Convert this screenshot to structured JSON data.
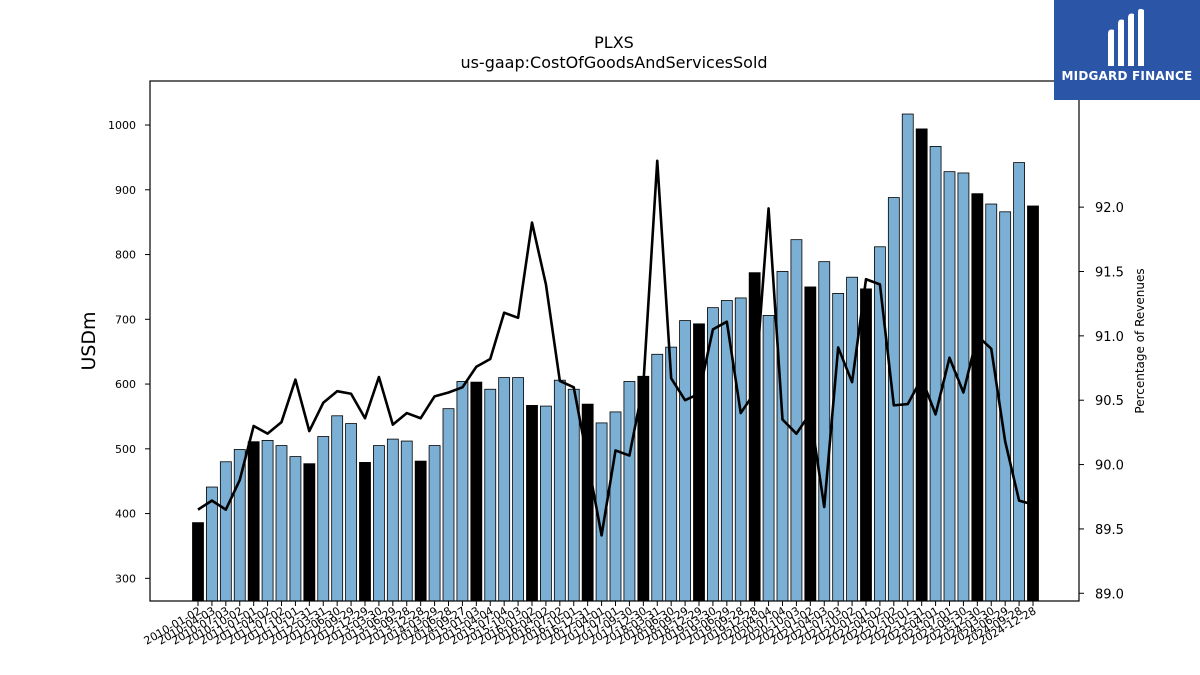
{
  "chart_data": {
    "type": "bar",
    "title": "PLXS",
    "subtitle": "us-gaap:CostOfGoodsAndServicesSold",
    "ylabel": "USDm",
    "y2label": "Percentage of Revenues",
    "ylim": [
      265,
      1068
    ],
    "y2lim": [
      88.94,
      92.98
    ],
    "yticks": [
      300,
      400,
      500,
      600,
      700,
      800,
      900,
      1000
    ],
    "y2ticks": [
      "89.0",
      "89.5",
      "90.0",
      "90.5",
      "91.0",
      "91.5",
      "92.0"
    ],
    "xticklabels": [
      "2010-01-02",
      "2010-04-03",
      "2010-07-03",
      "2010-10-02",
      "2011-01-01",
      "2011-04-02",
      "2011-07-02",
      "2011-10-01",
      "2011-12-31",
      "2012-03-31",
      "2012-06-30",
      "2012-09-29",
      "2012-12-29",
      "2013-03-30",
      "2013-06-29",
      "2013-09-28",
      "2013-12-28",
      "2014-03-29",
      "2014-06-28",
      "2014-09-27",
      "2015-01-03",
      "2015-04-04",
      "2015-07-04",
      "2015-10-03",
      "2016-01-02",
      "2016-04-02",
      "2016-07-02",
      "2016-10-01",
      "2016-12-31",
      "2017-04-01",
      "2017-07-01",
      "2017-09-30",
      "2017-12-30",
      "2018-03-31",
      "2018-06-30",
      "2018-09-29",
      "2018-12-29",
      "2019-03-30",
      "2019-06-29",
      "2019-09-28",
      "2019-12-28",
      "2020-04-04",
      "2020-07-04",
      "2020-10-03",
      "2021-01-02",
      "2021-04-03",
      "2021-07-03",
      "2021-10-02",
      "2022-01-01",
      "2022-04-02",
      "2022-07-02",
      "2022-10-01",
      "2022-12-31",
      "2023-04-01",
      "2023-07-01",
      "2023-09-30",
      "2023-12-30",
      "2024-03-30",
      "2024-06-29",
      "2024-09-28",
      "2024-12-28"
    ],
    "bar_values": [
      386,
      441,
      480,
      499,
      511,
      513,
      505,
      488,
      477,
      519,
      551,
      539,
      479,
      505,
      515,
      512,
      481,
      505,
      562,
      604,
      603,
      592,
      610,
      610,
      567,
      566,
      606,
      592,
      569,
      540,
      557,
      604,
      612,
      646,
      657,
      698,
      693,
      718,
      729,
      733,
      772,
      706,
      774,
      823,
      750,
      789,
      740,
      765,
      747,
      812,
      888,
      1017,
      994,
      967,
      928,
      926,
      894,
      878,
      866,
      942,
      875
    ],
    "bar_kind": [
      "annual",
      "quarterly",
      "quarterly",
      "quarterly",
      "annual",
      "quarterly",
      "quarterly",
      "quarterly",
      "annual",
      "quarterly",
      "quarterly",
      "quarterly",
      "annual",
      "quarterly",
      "quarterly",
      "quarterly",
      "annual",
      "quarterly",
      "quarterly",
      "quarterly",
      "annual",
      "quarterly",
      "quarterly",
      "quarterly",
      "annual",
      "quarterly",
      "quarterly",
      "quarterly",
      "annual",
      "quarterly",
      "quarterly",
      "quarterly",
      "annual",
      "quarterly",
      "quarterly",
      "quarterly",
      "annual",
      "quarterly",
      "quarterly",
      "quarterly",
      "annual",
      "quarterly",
      "quarterly",
      "quarterly",
      "annual",
      "quarterly",
      "quarterly",
      "quarterly",
      "annual",
      "quarterly",
      "quarterly",
      "quarterly",
      "annual",
      "quarterly",
      "quarterly",
      "quarterly",
      "annual",
      "quarterly",
      "quarterly",
      "quarterly",
      "annual"
    ],
    "line_values": [
      89.65,
      89.72,
      89.65,
      89.88,
      90.3,
      90.24,
      90.33,
      90.66,
      90.26,
      90.48,
      90.57,
      90.55,
      90.36,
      90.68,
      90.31,
      90.4,
      90.36,
      90.53,
      90.56,
      90.6,
      90.76,
      90.82,
      91.18,
      91.14,
      91.88,
      91.4,
      90.65,
      90.6,
      90.03,
      89.45,
      90.11,
      90.07,
      90.62,
      92.36,
      90.67,
      90.5,
      90.55,
      91.05,
      91.11,
      90.4,
      90.56,
      91.99,
      90.35,
      90.24,
      90.4,
      89.67,
      90.91,
      90.64,
      91.44,
      91.4,
      90.46,
      90.47,
      90.67,
      90.39,
      90.83,
      90.56,
      91.0,
      90.9,
      90.18,
      89.72,
      89.69
    ],
    "colors": {
      "quarterly_bar": "#7bafd4",
      "annual_bar": "#000000",
      "line": "#000000"
    }
  },
  "logo": {
    "name": "MIDGARD FINANCE",
    "background": "#2b56a8"
  }
}
